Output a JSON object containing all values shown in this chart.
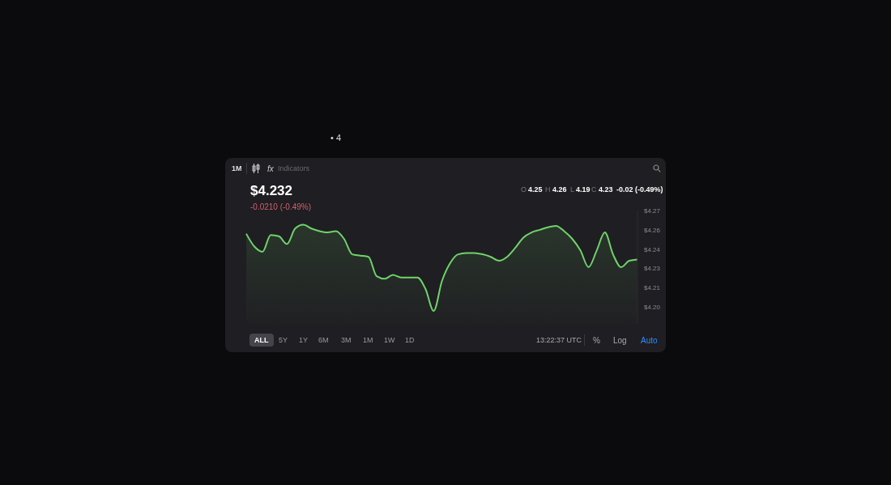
{
  "chart_data": {
    "type": "area",
    "title": "$4.232",
    "subtitle": "-0.0210 (-0.49%)",
    "annotations": [
      "• 4",
      "1M",
      "fx",
      "Indicators",
      "O",
      "4.25",
      "H",
      "4.26",
      "L",
      "4.19",
      "C",
      "4.23",
      "-0.02 (-0.49%)",
      "ALL",
      "5Y",
      "1Y",
      "6M",
      "3M",
      "1M",
      "1W",
      "1D",
      "13:22:37 UTC",
      "%",
      "Log",
      "Auto"
    ],
    "categories": [
      null,
      null,
      null,
      null,
      null,
      null,
      null,
      null,
      null,
      null,
      null,
      null,
      null,
      null,
      null,
      null,
      null,
      null,
      null,
      null,
      null,
      null,
      null,
      null,
      null,
      null,
      null,
      null,
      null,
      null,
      null,
      null,
      null,
      null,
      null,
      null,
      null,
      null,
      null,
      null,
      null,
      null,
      null,
      null,
      null,
      null,
      null,
      null,
      null
    ],
    "series": [
      {
        "color": "#6fd36a",
        "values": [
          4.252,
          4.242,
          4.238,
          4.251,
          4.25,
          4.244,
          4.256,
          4.259,
          4.256,
          4.254,
          4.253,
          4.254,
          4.248,
          4.236,
          4.235,
          4.234,
          4.219,
          4.217,
          4.22,
          4.218,
          4.218,
          4.218,
          4.209,
          4.192,
          4.215,
          4.229,
          4.236,
          4.237,
          4.237,
          4.236,
          4.234,
          4.231,
          4.234,
          4.241,
          4.249,
          4.253,
          4.255,
          4.257,
          4.258,
          4.254,
          4.248,
          4.239,
          4.226,
          4.239,
          4.253,
          4.236,
          4.226,
          4.231,
          4.232
        ]
      }
    ],
    "ylim": [
      4.182,
      4.27
    ],
    "yticks": [
      {
        "value": 4.27,
        "label": "$4.27"
      },
      {
        "value": 4.255,
        "label": "$4.26"
      },
      {
        "value": 4.24,
        "label": "$4.24"
      },
      {
        "value": 4.225,
        "label": "$4.23"
      },
      {
        "value": 4.21,
        "label": "$4.21"
      },
      {
        "value": 4.195,
        "label": "$4.20"
      }
    ],
    "grid": false,
    "legend": false,
    "tick_labels": "y"
  }
}
